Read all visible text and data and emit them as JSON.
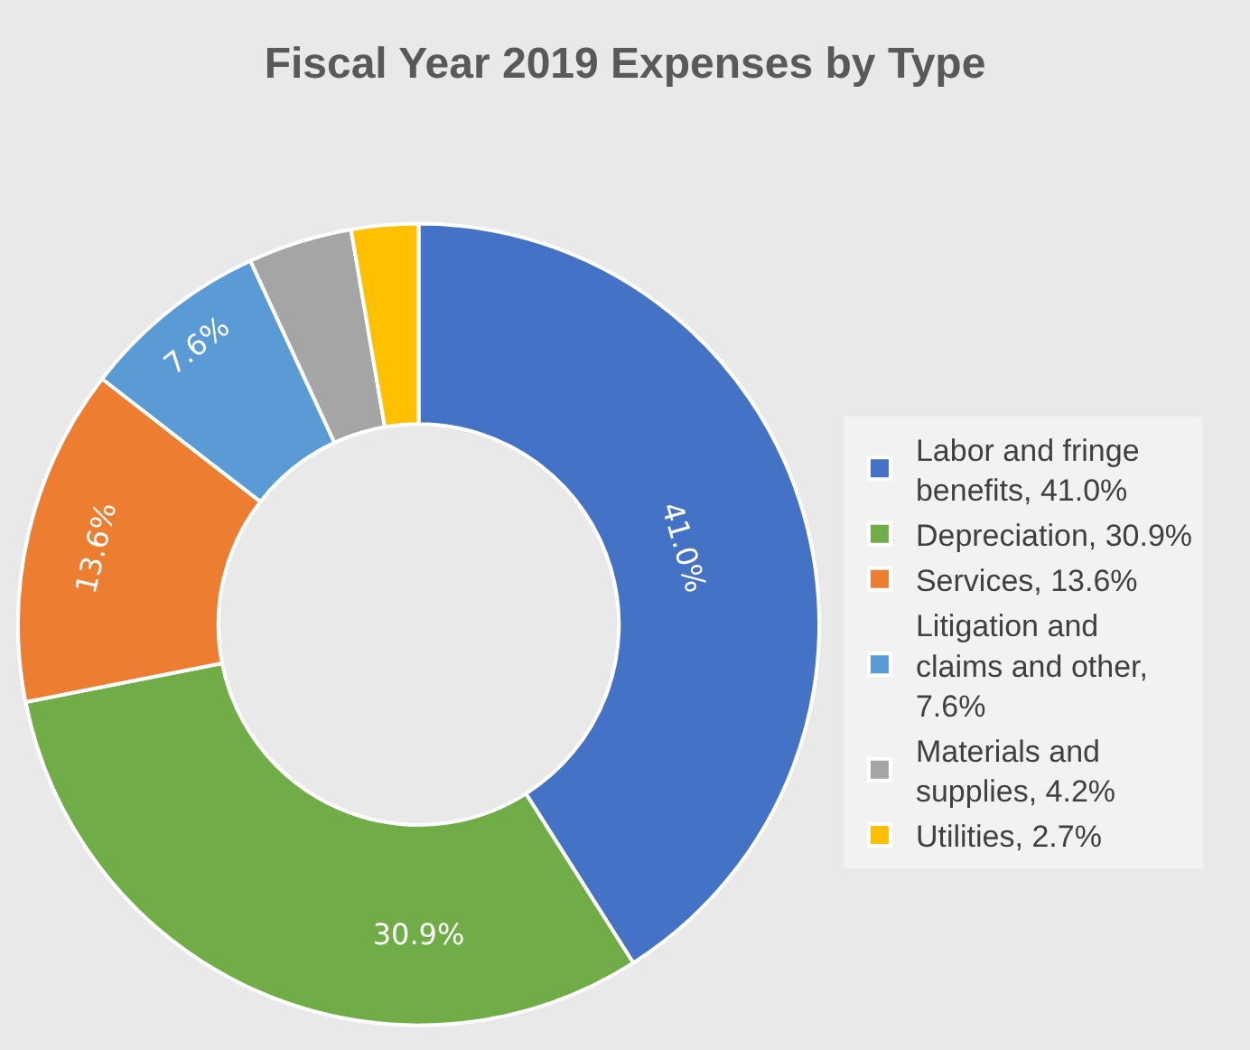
{
  "chart_data": {
    "type": "donut",
    "title": "Fiscal Year 2019 Expenses by Type",
    "categories": [
      "Labor and fringe benefits, 41.0%",
      "Depreciation, 30.9%",
      "Services, 13.6%",
      "Litigation and claims and other, 7.6%",
      "Materials and supplies, 4.2%",
      "Utilities, 2.7%"
    ],
    "values": [
      41.0,
      30.9,
      13.6,
      7.6,
      4.2,
      2.7
    ],
    "colors": [
      "#4472c4",
      "#70ad47",
      "#ed7d31",
      "#5b9bd5",
      "#a5a5a5",
      "#ffc000"
    ],
    "value_labels": [
      "41.0%",
      "30.9%",
      "13.6%",
      "7.6%",
      null,
      null
    ],
    "legend": "right"
  }
}
